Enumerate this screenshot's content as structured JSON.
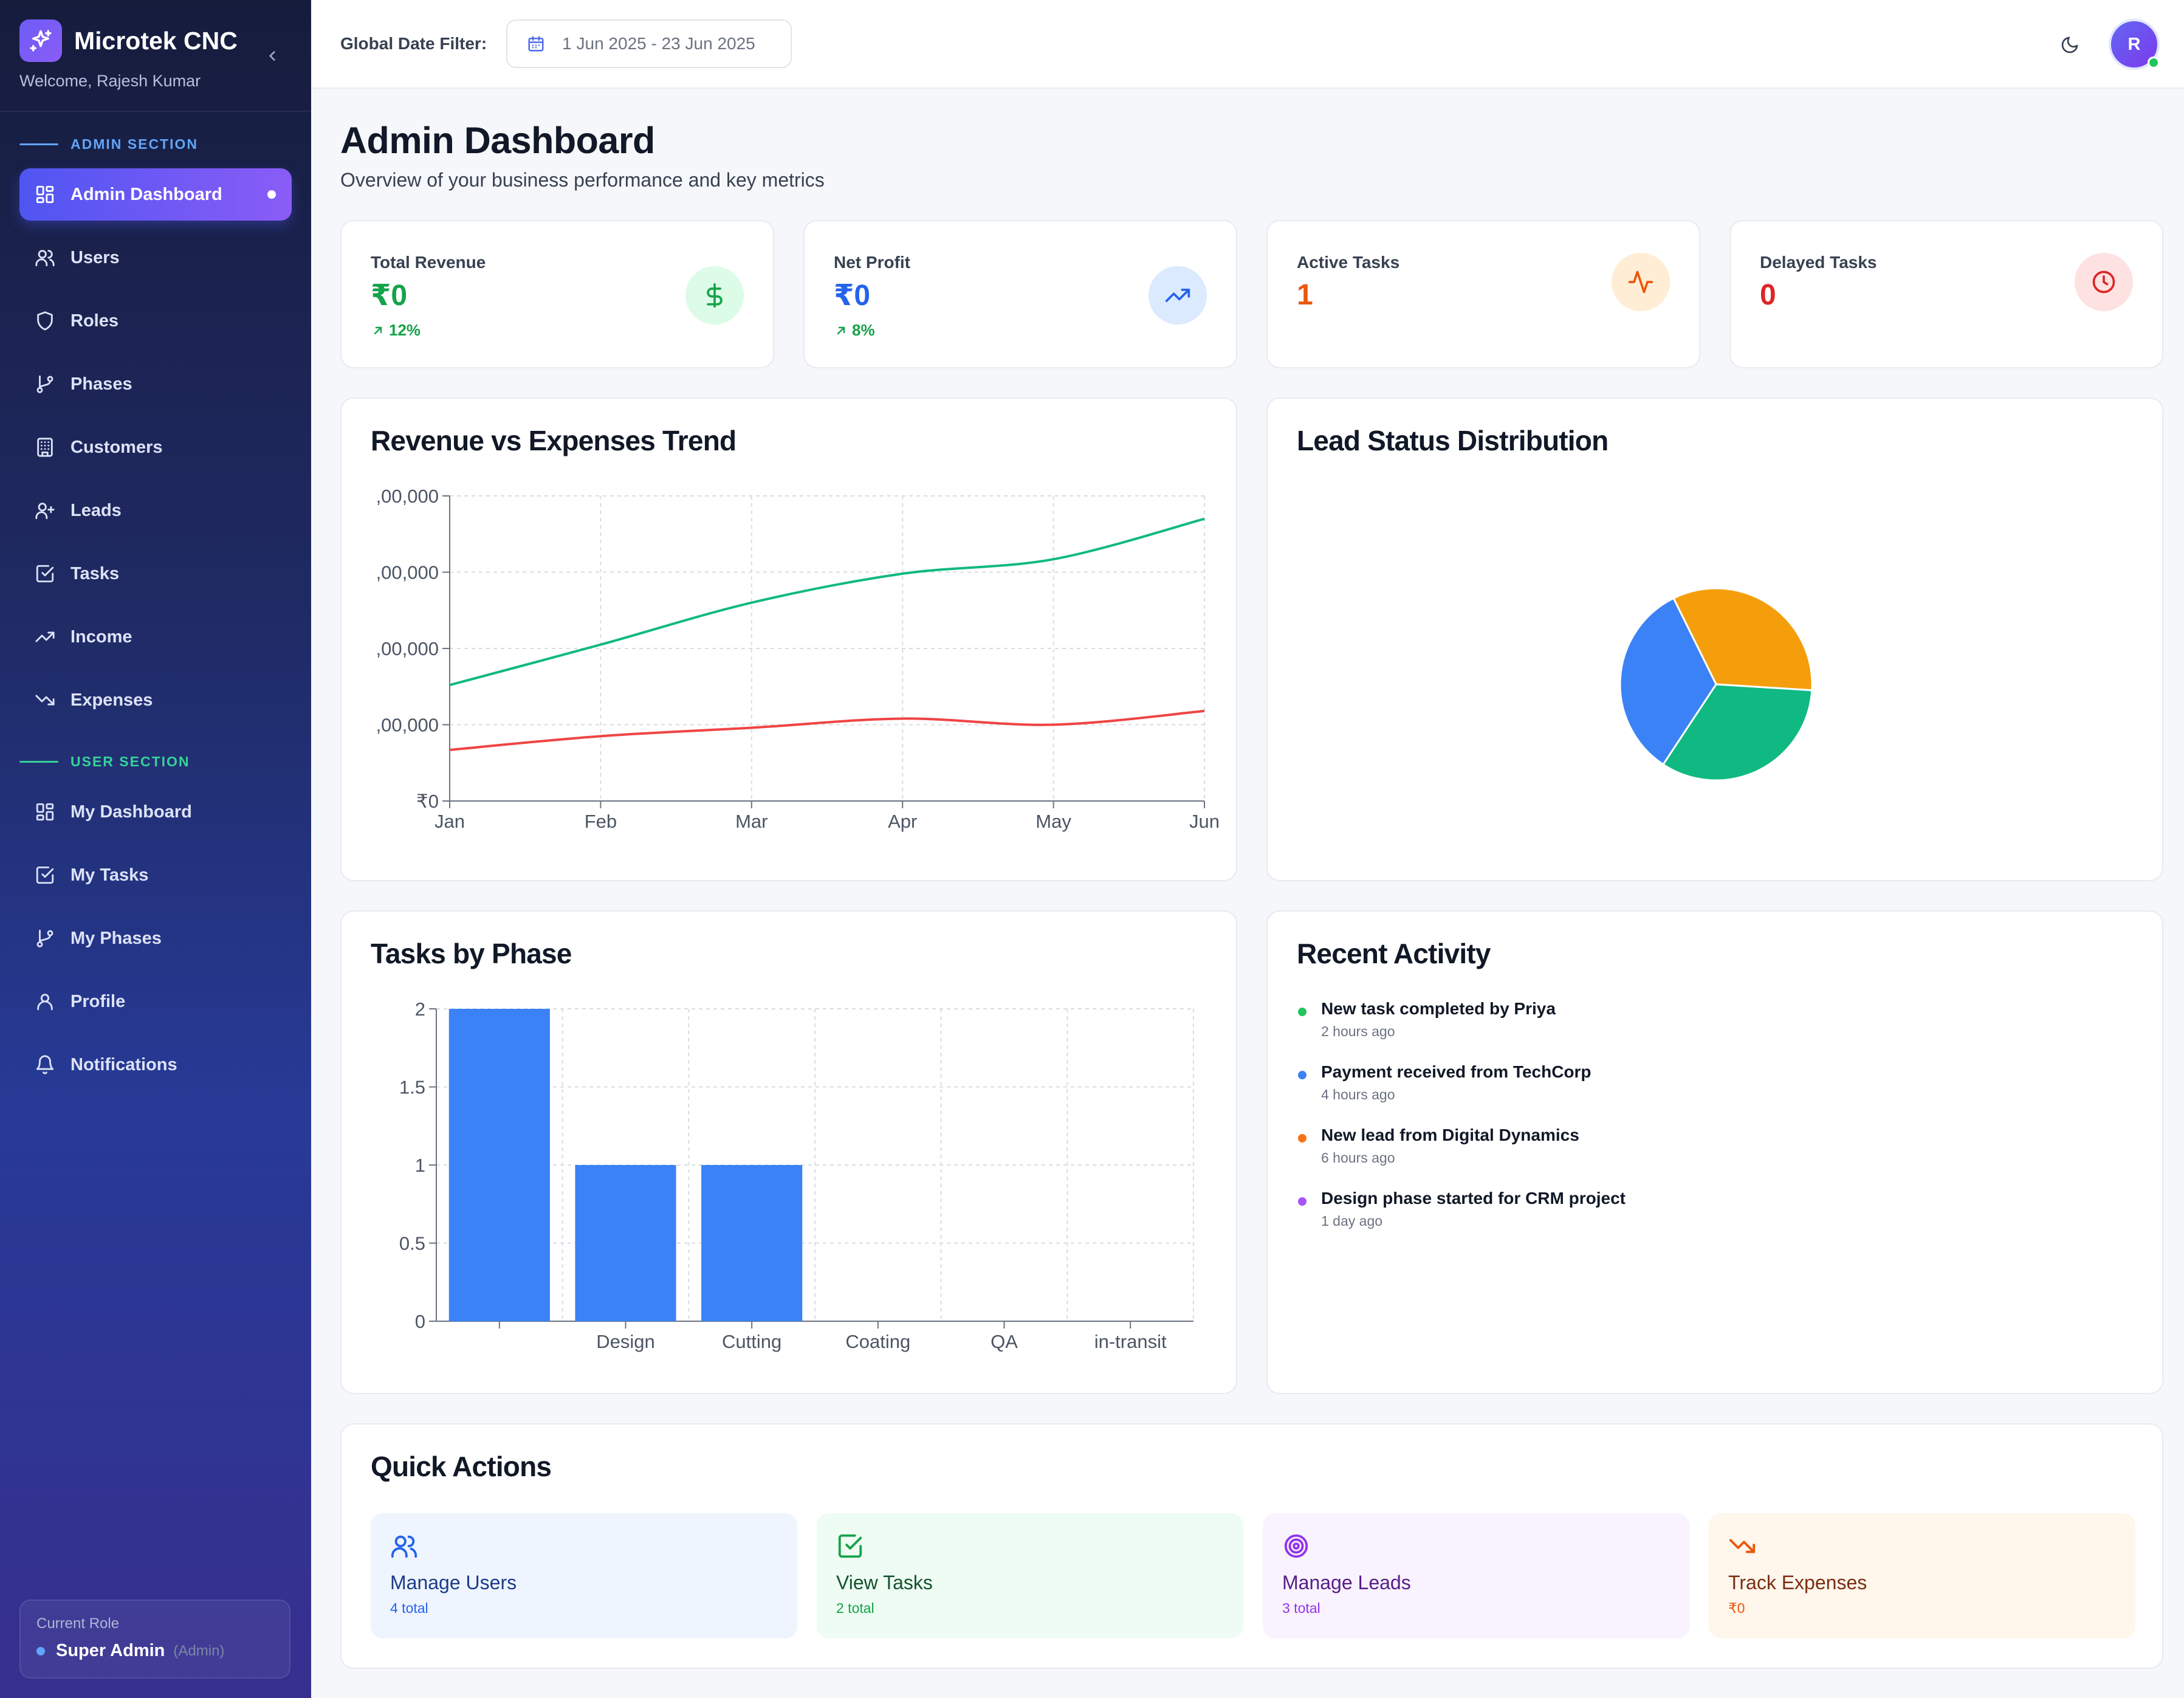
{
  "sidebar": {
    "brand": "Microtek CNC",
    "welcome": "Welcome, Rajesh Kumar",
    "admin_section": "ADMIN SECTION",
    "user_section": "USER SECTION",
    "admin_items": [
      {
        "label": "Admin Dashboard",
        "icon": "grid-icon",
        "active": true
      },
      {
        "label": "Users",
        "icon": "users-icon"
      },
      {
        "label": "Roles",
        "icon": "shield-icon"
      },
      {
        "label": "Phases",
        "icon": "git-branch-icon"
      },
      {
        "label": "Customers",
        "icon": "building-icon"
      },
      {
        "label": "Leads",
        "icon": "user-plus-icon"
      },
      {
        "label": "Tasks",
        "icon": "check-square-icon"
      },
      {
        "label": "Income",
        "icon": "trending-up-icon"
      },
      {
        "label": "Expenses",
        "icon": "trending-down-icon"
      }
    ],
    "user_items": [
      {
        "label": "My Dashboard",
        "icon": "grid-icon"
      },
      {
        "label": "My Tasks",
        "icon": "check-square-icon"
      },
      {
        "label": "My Phases",
        "icon": "git-branch-icon"
      },
      {
        "label": "Profile",
        "icon": "user-icon"
      },
      {
        "label": "Notifications",
        "icon": "bell-icon"
      }
    ],
    "role": {
      "title": "Current Role",
      "name": "Super Admin",
      "sub": "(Admin)"
    }
  },
  "topbar": {
    "filter_label": "Global Date Filter:",
    "date_range": "1 Jun 2025 - 23 Jun 2025",
    "avatar_initial": "R"
  },
  "header": {
    "title": "Admin Dashboard",
    "subtitle": "Overview of your business performance and key metrics"
  },
  "stats": [
    {
      "label": "Total Revenue",
      "value": "₹0",
      "trend": "12%",
      "color": "#16a34a",
      "icon": "dollar-icon"
    },
    {
      "label": "Net Profit",
      "value": "₹0",
      "trend": "8%",
      "color": "#2563eb",
      "icon": "trending-up-icon"
    },
    {
      "label": "Active Tasks",
      "value": "1",
      "color": "#ea580c",
      "icon": "activity-icon"
    },
    {
      "label": "Delayed Tasks",
      "value": "0",
      "color": "#dc2626",
      "icon": "clock-icon"
    }
  ],
  "charts": {
    "revenue_title": "Revenue vs Expenses Trend",
    "lead_title": "Lead Status Distribution",
    "phase_title": "Tasks by Phase"
  },
  "chart_data": [
    {
      "type": "line",
      "x": [
        "Jan",
        "Feb",
        "Mar",
        "Apr",
        "May",
        "Jun"
      ],
      "y_ticks": [
        "₹0",
        ",00,000",
        ",00,000",
        ",00,000",
        ",00,000"
      ],
      "y_range": [
        0,
        4
      ],
      "grid": true,
      "series": [
        {
          "values": [
            1.52,
            2.05,
            2.6,
            2.98,
            3.17,
            3.7
          ],
          "color": "#10b981"
        },
        {
          "values": [
            0.67,
            0.85,
            0.96,
            1.08,
            1.0,
            1.18
          ],
          "color": "#ef4444"
        }
      ]
    },
    {
      "type": "pie",
      "slices": [
        {
          "value": 33.3,
          "color": "#f59e0b"
        },
        {
          "value": 33.3,
          "color": "#10b981"
        },
        {
          "value": 33.4,
          "color": "#3b82f6"
        }
      ]
    },
    {
      "type": "bar",
      "categories": [
        "",
        "Design",
        "Cutting",
        "Coating",
        "QA",
        "in-transit"
      ],
      "values": [
        2,
        1,
        1,
        0,
        0,
        0
      ],
      "y_ticks": [
        "0",
        "0.5",
        "1",
        "1.5",
        "2"
      ],
      "ylim": [
        0,
        2
      ],
      "grid": true,
      "color": "#3b82f6"
    }
  ],
  "activity": {
    "title": "Recent Activity",
    "items": [
      {
        "text": "New task completed by Priya",
        "time": "2 hours ago",
        "color": "#22c55e"
      },
      {
        "text": "Payment received from TechCorp",
        "time": "4 hours ago",
        "color": "#3b82f6"
      },
      {
        "text": "New lead from Digital Dynamics",
        "time": "6 hours ago",
        "color": "#f97316"
      },
      {
        "text": "Design phase started for CRM project",
        "time": "1 day ago",
        "color": "#a855f7"
      }
    ]
  },
  "quick_actions": {
    "title": "Quick Actions",
    "items": [
      {
        "label": "Manage Users",
        "sub": "4 total",
        "icon": "users-icon",
        "bg": "#eef5ff",
        "fg": "#1e3a8a",
        "sub_fg": "#2563eb"
      },
      {
        "label": "View Tasks",
        "sub": "2 total",
        "icon": "check-square-icon",
        "bg": "#eefcf3",
        "fg": "#14532d",
        "sub_fg": "#16a34a"
      },
      {
        "label": "Manage Leads",
        "sub": "3 total",
        "icon": "target-icon",
        "bg": "#f8f3fe",
        "fg": "#581c87",
        "sub_fg": "#9333ea"
      },
      {
        "label": "Track Expenses",
        "sub": "₹0",
        "icon": "trending-down-icon",
        "bg": "#fff6ec",
        "fg": "#7c2d12",
        "sub_fg": "#ea580c"
      }
    ]
  }
}
